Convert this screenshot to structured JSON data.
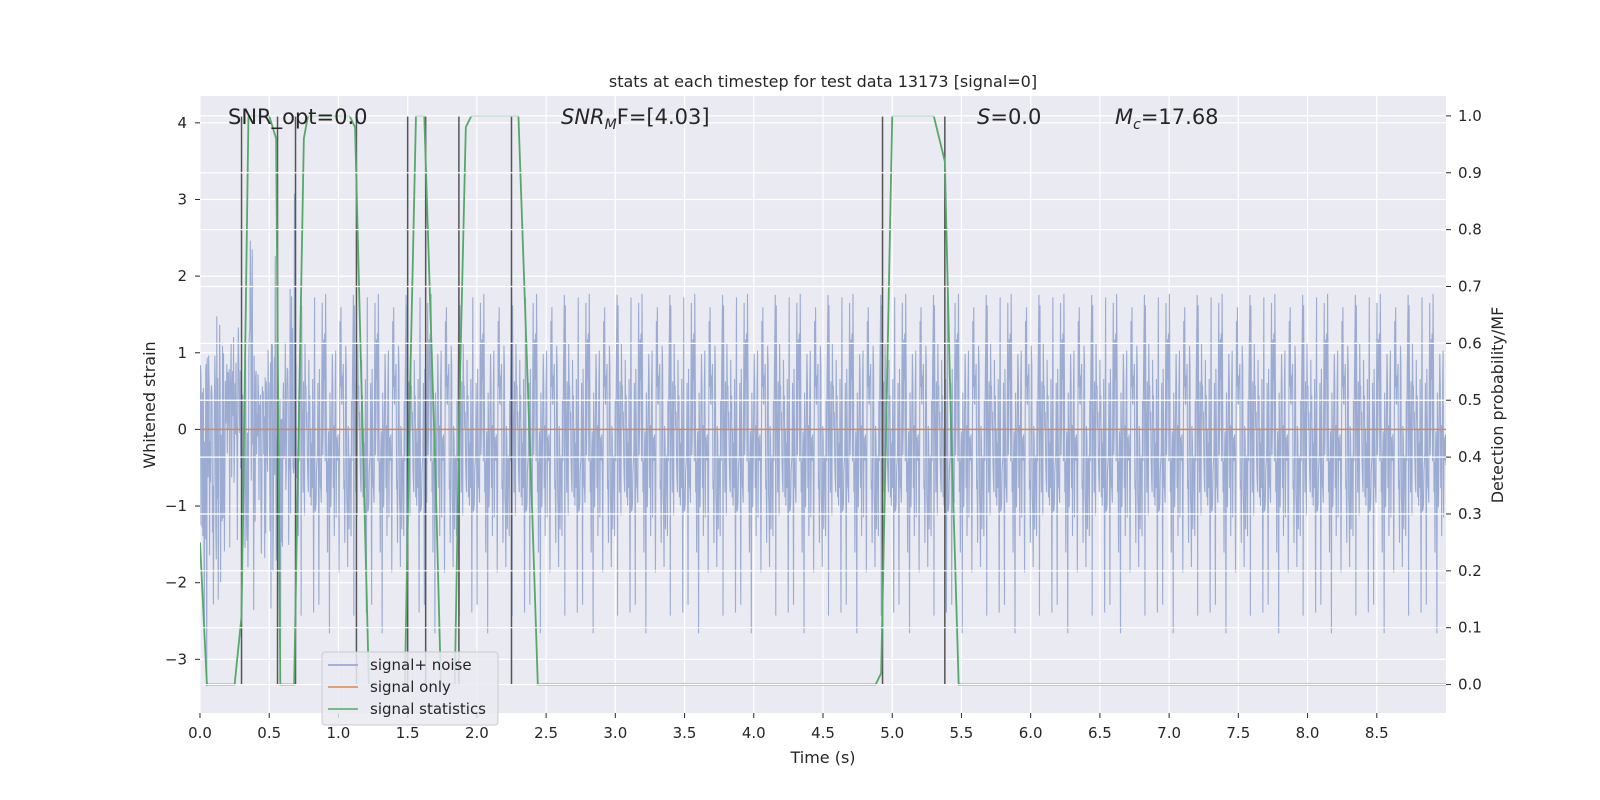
{
  "chart_data": {
    "type": "line",
    "title": "stats at each timestep for test data 13173 [signal=0]",
    "xlabel": "Time (s)",
    "ylabel_left": "Whitened strain",
    "ylabel_right": "Detection probability/MF",
    "xlim": [
      0,
      9.0
    ],
    "ylim_left": [
      -3.7,
      4.35
    ],
    "ylim_right": [
      -0.05,
      1.035
    ],
    "x_ticks": [
      "0.0",
      "0.5",
      "1.0",
      "1.5",
      "2.0",
      "2.5",
      "3.0",
      "3.5",
      "4.0",
      "4.5",
      "5.0",
      "5.5",
      "6.0",
      "6.5",
      "7.0",
      "7.5",
      "8.0",
      "8.5"
    ],
    "y_left_ticks": [
      "4",
      "3",
      "2",
      "1",
      "0",
      "−1",
      "−2",
      "−3"
    ],
    "y_right_ticks": [
      "1.0",
      "0.9",
      "0.8",
      "0.7",
      "0.6",
      "0.5",
      "0.4",
      "0.3",
      "0.2",
      "0.1",
      "0.0"
    ],
    "grid": true,
    "legend_position": "lower-left",
    "annotations": {
      "snr_opt": "SNR_opt=0.0",
      "snr_mf_name": "SNR",
      "snr_mf_sub": "M",
      "snr_mf_rest": "F=[4.03]",
      "s_name": "S",
      "s_rest": "=0.0",
      "mc_name": "M",
      "mc_sub": "c",
      "mc_rest": "=17.68"
    },
    "series": [
      {
        "name": "signal+ noise",
        "color": "#8da0cb",
        "description_of_values": "noise",
        "approx_amplitude": {
          "typical_abs": 1.1,
          "peak_max": 4.0,
          "peak_min": -3.4
        }
      },
      {
        "name": "signal only",
        "color": "#dd8452",
        "x": [
          0,
          9.0
        ],
        "y": [
          0,
          0
        ]
      },
      {
        "name": "signal statistics",
        "color": "#55a868",
        "axis": "right",
        "x": [
          0.0,
          0.05,
          0.25,
          0.3,
          0.35,
          0.5,
          0.55,
          0.58,
          0.62,
          0.68,
          0.75,
          0.78,
          1.08,
          1.12,
          1.22,
          1.48,
          1.52,
          1.56,
          1.62,
          1.7,
          1.74,
          1.84,
          1.88,
          1.92,
          1.96,
          2.0,
          2.3,
          2.4,
          2.44,
          4.88,
          4.92,
          4.96,
          5.0,
          5.3,
          5.38,
          5.42,
          5.48,
          9.0
        ],
        "y": [
          0.25,
          0.0,
          0.0,
          0.12,
          1.0,
          1.0,
          0.96,
          0.0,
          0.0,
          0.0,
          0.96,
          1.0,
          1.0,
          0.98,
          0.0,
          0.0,
          0.55,
          1.0,
          1.0,
          0.38,
          0.0,
          0.0,
          0.56,
          0.98,
          1.0,
          1.0,
          1.0,
          0.3,
          0.0,
          0.0,
          0.02,
          0.5,
          1.0,
          1.0,
          0.92,
          0.5,
          0.0,
          0.0
        ]
      }
    ],
    "vertical_lines_x": [
      0.3,
      0.56,
      0.69,
      1.13,
      1.5,
      1.63,
      1.87,
      2.25,
      4.93,
      5.38
    ]
  }
}
